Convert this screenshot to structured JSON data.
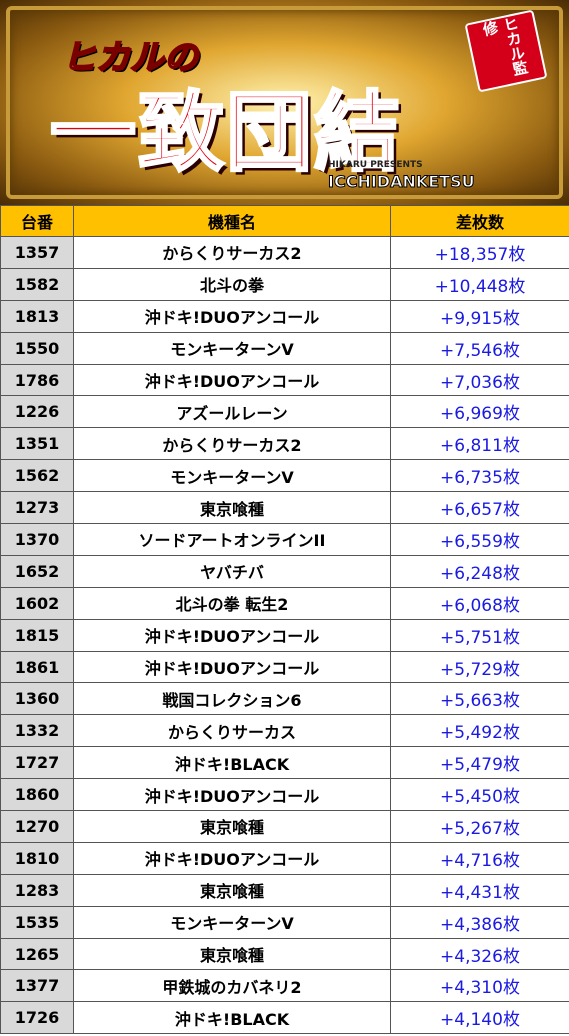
{
  "banner": {
    "title_small": "ヒカルの",
    "title_main": "一致団結",
    "badge": "ヒカル監修",
    "presents": "HIKARU PRESENTS",
    "romaji": "ICCHIDANKETSU"
  },
  "table": {
    "header": [
      "台番",
      "機種名",
      "差枚数"
    ],
    "rows": [
      [
        "1357",
        "からくりサーカス2",
        "+18,357枚"
      ],
      [
        "1582",
        "北斗の拳",
        "+10,448枚"
      ],
      [
        "1813",
        "沖ドキ!DUOアンコール",
        "+9,915枚"
      ],
      [
        "1550",
        "モンキーターンV",
        "+7,546枚"
      ],
      [
        "1786",
        "沖ドキ!DUOアンコール",
        "+7,036枚"
      ],
      [
        "1226",
        "アズールレーン",
        "+6,969枚"
      ],
      [
        "1351",
        "からくりサーカス2",
        "+6,811枚"
      ],
      [
        "1562",
        "モンキーターンV",
        "+6,735枚"
      ],
      [
        "1273",
        "東京喰種",
        "+6,657枚"
      ],
      [
        "1370",
        "ソードアートオンラインII",
        "+6,559枚"
      ],
      [
        "1652",
        "ヤバチバ",
        "+6,248枚"
      ],
      [
        "1602",
        "北斗の拳 転生2",
        "+6,068枚"
      ],
      [
        "1815",
        "沖ドキ!DUOアンコール",
        "+5,751枚"
      ],
      [
        "1861",
        "沖ドキ!DUOアンコール",
        "+5,729枚"
      ],
      [
        "1360",
        "戦国コレクション6",
        "+5,663枚"
      ],
      [
        "1332",
        "からくりサーカス",
        "+5,492枚"
      ],
      [
        "1727",
        "沖ドキ!BLACK",
        "+5,479枚"
      ],
      [
        "1860",
        "沖ドキ!DUOアンコール",
        "+5,450枚"
      ],
      [
        "1270",
        "東京喰種",
        "+5,267枚"
      ],
      [
        "1810",
        "沖ドキ!DUOアンコール",
        "+4,716枚"
      ],
      [
        "1283",
        "東京喰種",
        "+4,431枚"
      ],
      [
        "1535",
        "モンキーターンV",
        "+4,386枚"
      ],
      [
        "1265",
        "東京喰種",
        "+4,326枚"
      ],
      [
        "1377",
        "甲鉄城のカバネリ2",
        "+4,310枚"
      ],
      [
        "1726",
        "沖ドキ!BLACK",
        "+4,140枚"
      ]
    ]
  }
}
